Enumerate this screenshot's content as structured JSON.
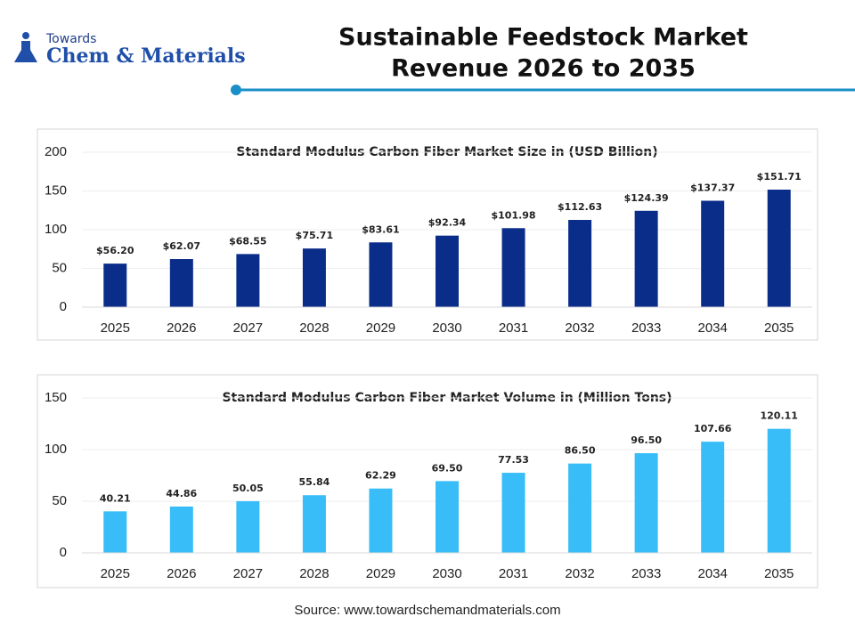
{
  "header": {
    "logo_small": "Towards",
    "logo": "Chem & Materials",
    "title_lines": [
      "Sustainable Feedstock Market",
      "Revenue 2026 to 2035"
    ]
  },
  "source": "Source: www.towardschemandmaterials.com",
  "chart_data": [
    {
      "type": "bar",
      "title": "Standard Modulus Carbon Fiber Market Size in (USD Billion)",
      "categories": [
        "2025",
        "2026",
        "2027",
        "2028",
        "2029",
        "2030",
        "2031",
        "2032",
        "2033",
        "2034",
        "2035"
      ],
      "values": [
        56.2,
        62.07,
        68.55,
        75.71,
        83.61,
        92.34,
        101.98,
        112.63,
        124.39,
        137.37,
        151.71
      ],
      "value_labels": [
        "$56.20",
        "$62.07",
        "$68.55",
        "$75.71",
        "$83.61",
        "$92.34",
        "$101.98",
        "$112.63",
        "$124.39",
        "$137.37",
        "$151.71"
      ],
      "color": "#0b2d8a",
      "ylim": [
        0,
        200
      ],
      "yticks": [
        0,
        50,
        100,
        150,
        200
      ],
      "grid": true
    },
    {
      "type": "bar",
      "title": "Standard Modulus Carbon Fiber Market Volume in (Million Tons)",
      "categories": [
        "2025",
        "2026",
        "2027",
        "2028",
        "2029",
        "2030",
        "2031",
        "2032",
        "2033",
        "2034",
        "2035"
      ],
      "values": [
        40.21,
        44.86,
        50.05,
        55.84,
        62.29,
        69.5,
        77.53,
        86.5,
        96.5,
        107.66,
        120.11
      ],
      "value_labels": [
        "40.21",
        "44.86",
        "50.05",
        "55.84",
        "62.29",
        "69.50",
        "77.53",
        "86.50",
        "96.50",
        "107.66",
        "120.11"
      ],
      "color": "#38bdf8",
      "ylim": [
        0,
        150
      ],
      "yticks": [
        0,
        50,
        100,
        150
      ],
      "grid": true
    }
  ]
}
